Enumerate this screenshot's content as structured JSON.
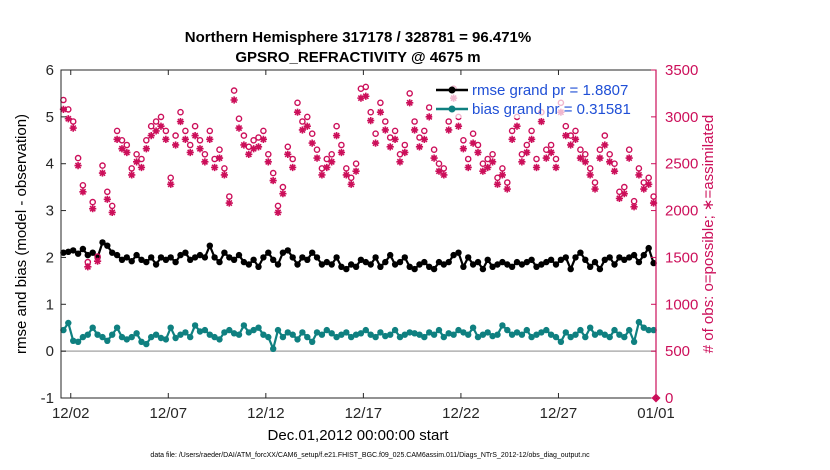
{
  "chart_data": {
    "type": "line",
    "title": "Northern Hemisphere 317178 / 328781 = 96.471%",
    "subtitle": "GPSRO_REFRACTIVITY @ 4675 m",
    "xlabel": "Dec.01,2012 00:00:00 start",
    "ylabel": "rmse and bias (model - observation)",
    "ylabel_right": "# of obs: o=possible; ∗=assimilated",
    "x_ticks": [
      "12/02",
      "12/07",
      "12/12",
      "12/17",
      "12/22",
      "12/27",
      "01/01"
    ],
    "x_tick_days": [
      1,
      6,
      11,
      16,
      21,
      26,
      31
    ],
    "xlim": [
      0.5,
      31
    ],
    "ylim": [
      -1,
      6
    ],
    "y_ticks": [
      "-1",
      "0",
      "1",
      "2",
      "3",
      "4",
      "5",
      "6"
    ],
    "ylim_right": [
      0,
      3500
    ],
    "y_ticks_right": [
      "0",
      "500",
      "1000",
      "1500",
      "2000",
      "2500",
      "3000",
      "3500"
    ],
    "zero_line": 0,
    "footnote": "data file: /Users/raeder/DAI/ATM_forcXX/CAM6_setup/f.e21.FHIST_BGC.f09_025.CAM6assim.011/Diags_NTrS_2012-12/obs_diag_output.nc",
    "colors": {
      "rmse": "#000000",
      "bias": "#0f8080",
      "obs": "#cc0f5a",
      "axis_right": "#cc0f5a",
      "zero_line": "#b0b0b0",
      "legend_text": "#1f4fd6"
    },
    "legend": {
      "placement": "top-right"
    },
    "series": [
      {
        "name": "rmse grand pr = 1.8807",
        "axis": "left",
        "marker": "filled-circle",
        "x": [
          0.625,
          0.875,
          1.125,
          1.375,
          1.625,
          1.875,
          2.125,
          2.375,
          2.625,
          2.875,
          3.125,
          3.375,
          3.625,
          3.875,
          4.125,
          4.375,
          4.625,
          4.875,
          5.125,
          5.375,
          5.625,
          5.875,
          6.125,
          6.375,
          6.625,
          6.875,
          7.125,
          7.375,
          7.625,
          7.875,
          8.125,
          8.375,
          8.625,
          8.875,
          9.125,
          9.375,
          9.625,
          9.875,
          10.125,
          10.375,
          10.625,
          10.875,
          11.125,
          11.375,
          11.625,
          11.875,
          12.125,
          12.375,
          12.625,
          12.875,
          13.125,
          13.375,
          13.625,
          13.875,
          14.125,
          14.375,
          14.625,
          14.875,
          15.125,
          15.375,
          15.625,
          15.875,
          16.125,
          16.375,
          16.625,
          16.875,
          17.125,
          17.375,
          17.625,
          17.875,
          18.125,
          18.375,
          18.625,
          18.875,
          19.125,
          19.375,
          19.625,
          19.875,
          20.125,
          20.375,
          20.625,
          20.875,
          21.125,
          21.375,
          21.625,
          21.875,
          22.125,
          22.375,
          22.625,
          22.875,
          23.125,
          23.375,
          23.625,
          23.875,
          24.125,
          24.375,
          24.625,
          24.875,
          25.125,
          25.375,
          25.625,
          25.875,
          26.125,
          26.375,
          26.625,
          26.875,
          27.125,
          27.375,
          27.625,
          27.875,
          28.125,
          28.375,
          28.625,
          28.875,
          29.125,
          29.375,
          29.625,
          29.875,
          30.125,
          30.375,
          30.625,
          30.875
        ],
        "y": [
          2.1,
          2.12,
          2.15,
          2.08,
          2.18,
          2.05,
          2.1,
          2.0,
          2.32,
          2.25,
          2.1,
          2.05,
          1.95,
          2.0,
          1.92,
          2.05,
          1.95,
          1.9,
          2.0,
          1.85,
          2.0,
          1.95,
          2.0,
          1.9,
          2.05,
          2.1,
          1.95,
          2.0,
          2.05,
          2.0,
          2.25,
          2.0,
          1.9,
          2.1,
          2.0,
          1.95,
          2.05,
          1.9,
          1.85,
          1.95,
          1.8,
          2.0,
          2.1,
          1.95,
          1.85,
          2.1,
          2.15,
          2.0,
          1.85,
          2.0,
          1.95,
          2.1,
          2.0,
          1.85,
          1.9,
          1.85,
          2.0,
          1.8,
          1.75,
          1.85,
          1.8,
          1.95,
          1.9,
          1.85,
          2.0,
          1.8,
          1.9,
          2.05,
          1.85,
          1.9,
          2.0,
          1.8,
          1.75,
          1.85,
          1.9,
          1.8,
          1.75,
          1.9,
          1.85,
          1.9,
          2.05,
          2.1,
          1.8,
          2.0,
          1.85,
          1.9,
          1.75,
          1.95,
          1.8,
          1.85,
          1.9,
          1.85,
          1.8,
          1.9,
          1.85,
          1.9,
          1.95,
          1.8,
          1.85,
          1.9,
          1.95,
          1.85,
          1.95,
          2.0,
          1.75,
          2.0,
          2.1,
          1.95,
          1.8,
          1.9,
          1.75,
          1.95,
          2.0,
          1.85,
          2.0,
          1.95,
          2.0,
          2.05,
          1.9,
          2.05,
          2.2,
          1.88
        ]
      },
      {
        "name": "bias grand pr = 0.31581",
        "axis": "left",
        "marker": "filled-circle",
        "x": [
          0.625,
          0.875,
          1.125,
          1.375,
          1.625,
          1.875,
          2.125,
          2.375,
          2.625,
          2.875,
          3.125,
          3.375,
          3.625,
          3.875,
          4.125,
          4.375,
          4.625,
          4.875,
          5.125,
          5.375,
          5.625,
          5.875,
          6.125,
          6.375,
          6.625,
          6.875,
          7.125,
          7.375,
          7.625,
          7.875,
          8.125,
          8.375,
          8.625,
          8.875,
          9.125,
          9.375,
          9.625,
          9.875,
          10.125,
          10.375,
          10.625,
          10.875,
          11.125,
          11.375,
          11.625,
          11.875,
          12.125,
          12.375,
          12.625,
          12.875,
          13.125,
          13.375,
          13.625,
          13.875,
          14.125,
          14.375,
          14.625,
          14.875,
          15.125,
          15.375,
          15.625,
          15.875,
          16.125,
          16.375,
          16.625,
          16.875,
          17.125,
          17.375,
          17.625,
          17.875,
          18.125,
          18.375,
          18.625,
          18.875,
          19.125,
          19.375,
          19.625,
          19.875,
          20.125,
          20.375,
          20.625,
          20.875,
          21.125,
          21.375,
          21.625,
          21.875,
          22.125,
          22.375,
          22.625,
          22.875,
          23.125,
          23.375,
          23.625,
          23.875,
          24.125,
          24.375,
          24.625,
          24.875,
          25.125,
          25.375,
          25.625,
          25.875,
          26.125,
          26.375,
          26.625,
          26.875,
          27.125,
          27.375,
          27.625,
          27.875,
          28.125,
          28.375,
          28.625,
          28.875,
          29.125,
          29.375,
          29.625,
          29.875,
          30.125,
          30.375,
          30.625,
          30.875
        ],
        "y": [
          0.45,
          0.6,
          0.22,
          0.2,
          0.3,
          0.35,
          0.5,
          0.35,
          0.3,
          0.22,
          0.35,
          0.5,
          0.3,
          0.25,
          0.3,
          0.38,
          0.2,
          0.15,
          0.3,
          0.35,
          0.28,
          0.25,
          0.5,
          0.28,
          0.35,
          0.4,
          0.3,
          0.55,
          0.42,
          0.45,
          0.35,
          0.3,
          0.25,
          0.4,
          0.45,
          0.38,
          0.35,
          0.55,
          0.4,
          0.45,
          0.5,
          0.35,
          0.3,
          0.05,
          0.45,
          0.3,
          0.4,
          0.35,
          0.25,
          0.4,
          0.3,
          0.2,
          0.4,
          0.35,
          0.45,
          0.38,
          0.3,
          0.35,
          0.4,
          0.3,
          0.35,
          0.38,
          0.45,
          0.35,
          0.3,
          0.4,
          0.32,
          0.35,
          0.45,
          0.3,
          0.35,
          0.4,
          0.38,
          0.35,
          0.3,
          0.4,
          0.35,
          0.45,
          0.3,
          0.38,
          0.35,
          0.45,
          0.4,
          0.35,
          0.5,
          0.3,
          0.35,
          0.4,
          0.32,
          0.35,
          0.55,
          0.45,
          0.35,
          0.4,
          0.35,
          0.45,
          0.3,
          0.35,
          0.4,
          0.45,
          0.35,
          0.3,
          0.2,
          0.4,
          0.3,
          0.35,
          0.45,
          0.3,
          0.5,
          0.35,
          0.4,
          0.35,
          0.3,
          0.45,
          0.35,
          0.3,
          0.45,
          0.2,
          0.62,
          0.5,
          0.45,
          0.45
        ]
      },
      {
        "name": "possible",
        "axis": "right",
        "marker": "open-circle",
        "x": [
          0.625,
          0.875,
          1.125,
          1.375,
          1.625,
          1.875,
          2.125,
          2.375,
          2.625,
          2.875,
          3.125,
          3.375,
          3.625,
          3.875,
          4.125,
          4.375,
          4.625,
          4.875,
          5.125,
          5.375,
          5.625,
          5.875,
          6.125,
          6.375,
          6.625,
          6.875,
          7.125,
          7.375,
          7.625,
          7.875,
          8.125,
          8.375,
          8.625,
          8.875,
          9.125,
          9.375,
          9.625,
          9.875,
          10.125,
          10.375,
          10.625,
          10.875,
          11.125,
          11.375,
          11.625,
          11.875,
          12.125,
          12.375,
          12.625,
          12.875,
          13.125,
          13.375,
          13.625,
          13.875,
          14.125,
          14.375,
          14.625,
          14.875,
          15.125,
          15.375,
          15.625,
          15.875,
          16.125,
          16.375,
          16.625,
          16.875,
          17.125,
          17.375,
          17.625,
          17.875,
          18.125,
          18.375,
          18.625,
          18.875,
          19.125,
          19.375,
          19.625,
          19.875,
          20.125,
          20.375,
          20.625,
          20.875,
          21.125,
          21.375,
          21.625,
          21.875,
          22.125,
          22.375,
          22.625,
          22.875,
          23.125,
          23.375,
          23.625,
          23.875,
          24.125,
          24.375,
          24.625,
          24.875,
          25.125,
          25.375,
          25.625,
          25.875,
          26.125,
          26.375,
          26.625,
          26.875,
          27.125,
          27.375,
          27.625,
          27.875,
          28.125,
          28.375,
          28.625,
          28.875,
          29.125,
          29.375,
          29.625,
          29.875,
          30.125,
          30.375,
          30.625,
          30.875
        ],
        "y": [
          3180,
          3080,
          2950,
          2560,
          2270,
          1450,
          2090,
          1510,
          2480,
          2200,
          2050,
          2850,
          2750,
          2700,
          2450,
          2600,
          2550,
          2750,
          2900,
          2950,
          3000,
          2850,
          2350,
          2800,
          3050,
          2850,
          2700,
          2900,
          2750,
          2600,
          2850,
          2550,
          2650,
          2450,
          2150,
          3280,
          2980,
          2800,
          2680,
          2750,
          2780,
          2850,
          2600,
          2400,
          2050,
          2250,
          2680,
          2550,
          3150,
          2950,
          3000,
          2820,
          2650,
          2450,
          2550,
          2600,
          2900,
          2700,
          2450,
          2350,
          2500,
          3300,
          3320,
          3050,
          2820,
          3150,
          2950,
          2780,
          2850,
          2600,
          2700,
          3250,
          2950,
          2780,
          2850,
          3100,
          2650,
          2500,
          2450,
          2950,
          3300,
          3000,
          2750,
          2550,
          2820,
          2700,
          2500,
          2550,
          2600,
          2350,
          2450,
          2300,
          2850,
          3000,
          2600,
          2700,
          2850,
          2550,
          3050,
          2650,
          2700,
          2550,
          3150,
          2900,
          2800,
          2850,
          2650,
          2600,
          2450,
          2300,
          2650,
          2800,
          2600,
          2500,
          2200,
          2250,
          2650,
          2100,
          2450,
          2300,
          2350,
          2150
        ]
      },
      {
        "name": "assimilated",
        "axis": "right",
        "marker": "asterisk",
        "x": [
          0.625,
          0.875,
          1.125,
          1.375,
          1.625,
          1.875,
          2.125,
          2.375,
          2.625,
          2.875,
          3.125,
          3.375,
          3.625,
          3.875,
          4.125,
          4.375,
          4.625,
          4.875,
          5.125,
          5.375,
          5.625,
          5.875,
          6.125,
          6.375,
          6.625,
          6.875,
          7.125,
          7.375,
          7.625,
          7.875,
          8.125,
          8.375,
          8.625,
          8.875,
          9.125,
          9.375,
          9.625,
          9.875,
          10.125,
          10.375,
          10.625,
          10.875,
          11.125,
          11.375,
          11.625,
          11.875,
          12.125,
          12.375,
          12.625,
          12.875,
          13.125,
          13.375,
          13.625,
          13.875,
          14.125,
          14.375,
          14.625,
          14.875,
          15.125,
          15.375,
          15.625,
          15.875,
          16.125,
          16.375,
          16.625,
          16.875,
          17.125,
          17.375,
          17.625,
          17.875,
          18.125,
          18.375,
          18.625,
          18.875,
          19.125,
          19.375,
          19.625,
          19.875,
          20.125,
          20.375,
          20.625,
          20.875,
          21.125,
          21.375,
          21.625,
          21.875,
          22.125,
          22.375,
          22.625,
          22.875,
          23.125,
          23.375,
          23.625,
          23.875,
          24.125,
          24.375,
          24.625,
          24.875,
          25.125,
          25.375,
          25.625,
          25.875,
          26.125,
          26.375,
          26.625,
          26.875,
          27.125,
          27.375,
          27.625,
          27.875,
          28.125,
          28.375,
          28.625,
          28.875,
          29.125,
          29.375,
          29.625,
          29.875,
          30.125,
          30.375,
          30.625,
          30.875
        ],
        "y": [
          3080,
          2980,
          2880,
          2480,
          2200,
          1400,
          2020,
          1460,
          2400,
          2120,
          1980,
          2760,
          2660,
          2620,
          2380,
          2520,
          2460,
          2660,
          2800,
          2850,
          2900,
          2760,
          2280,
          2700,
          2950,
          2760,
          2620,
          2800,
          2660,
          2520,
          2760,
          2460,
          2560,
          2380,
          2080,
          3180,
          2880,
          2700,
          2600,
          2660,
          2680,
          2760,
          2520,
          2320,
          1980,
          2180,
          2600,
          2460,
          3050,
          2860,
          2900,
          2720,
          2560,
          2380,
          2460,
          2520,
          2800,
          2620,
          2380,
          2280,
          2420,
          3200,
          3220,
          2960,
          2720,
          3050,
          2860,
          2680,
          2760,
          2520,
          2620,
          3150,
          2860,
          2680,
          2760,
          3000,
          2560,
          2420,
          2380,
          2860,
          3200,
          2900,
          2660,
          2460,
          2720,
          2620,
          2420,
          2460,
          2520,
          2280,
          2380,
          2230,
          2760,
          2900,
          2520,
          2620,
          2760,
          2460,
          2950,
          2560,
          2620,
          2460,
          3050,
          2800,
          2700,
          2760,
          2560,
          2520,
          2380,
          2230,
          2560,
          2700,
          2520,
          2420,
          2130,
          2180,
          2560,
          2040,
          2380,
          2230,
          2280,
          2080
        ]
      }
    ]
  }
}
